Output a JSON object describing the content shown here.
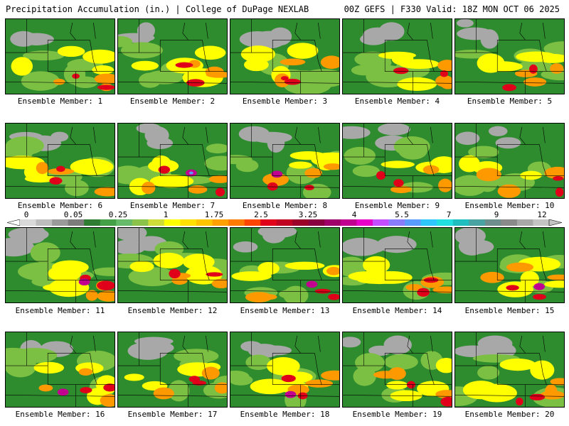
{
  "header": {
    "title": "Precipitation Accumulation (in.) | College of DuPage NEXLAB",
    "run_info": "00Z GEFS | F330 Valid: 18Z MON OCT 06 2025"
  },
  "colorbar": {
    "labels": [
      "0",
      "0.05",
      "0.25",
      "1",
      "1.75",
      "2.5",
      "3.25",
      "4",
      "5.5",
      "7",
      "9",
      "12"
    ],
    "colors": [
      "#d9d9d9",
      "#bdbdbd",
      "#9a9a9a",
      "#7c7c7c",
      "#2e7d32",
      "#43a047",
      "#66bb6a",
      "#8bc34a",
      "#cddc39",
      "#ffff00",
      "#ffe000",
      "#ffc400",
      "#ffa000",
      "#ff7a00",
      "#ff4500",
      "#e0001a",
      "#c00020",
      "#9a0028",
      "#880040",
      "#a0006a",
      "#c2008f",
      "#e600c8",
      "#c44dff",
      "#8a7cff",
      "#5a9bff",
      "#2ec7ff",
      "#22e0e0",
      "#1fbfbf",
      "#4aa3a3",
      "#6e8e8e",
      "#8a8a8a",
      "#a8a8a8",
      "#c4c4c4"
    ]
  },
  "members": [
    {
      "caption": "Ensemble Member: 1"
    },
    {
      "caption": "Ensemble Member: 2"
    },
    {
      "caption": "Ensemble Member: 3"
    },
    {
      "caption": "Ensemble Member: 4"
    },
    {
      "caption": "Ensemble Member: 5"
    },
    {
      "caption": "Ensemble Member: 6"
    },
    {
      "caption": "Ensemble Member: 7"
    },
    {
      "caption": "Ensemble Member: 8"
    },
    {
      "caption": "Ensemble Member: 9"
    },
    {
      "caption": "Ensemble Member: 10"
    },
    {
      "caption": "Ensemble Member: 11"
    },
    {
      "caption": "Ensemble Member: 12"
    },
    {
      "caption": "Ensemble Member: 13"
    },
    {
      "caption": "Ensemble Member: 14"
    },
    {
      "caption": "Ensemble Member: 15"
    },
    {
      "caption": "Ensemble Member: 16"
    },
    {
      "caption": "Ensemble Member: 17"
    },
    {
      "caption": "Ensemble Member: 18"
    },
    {
      "caption": "Ensemble Member: 19"
    },
    {
      "caption": "Ensemble Member: 20"
    }
  ],
  "map_colors": {
    "dry": "#a8a8a8",
    "light": "#2e8b2e",
    "mid": "#7cc043",
    "moderate": "#ffff00",
    "heavy": "#ff9900",
    "very_heavy": "#e0001a",
    "extreme": "#c2008f",
    "peak": "#5a9bff",
    "border": "#000000"
  }
}
